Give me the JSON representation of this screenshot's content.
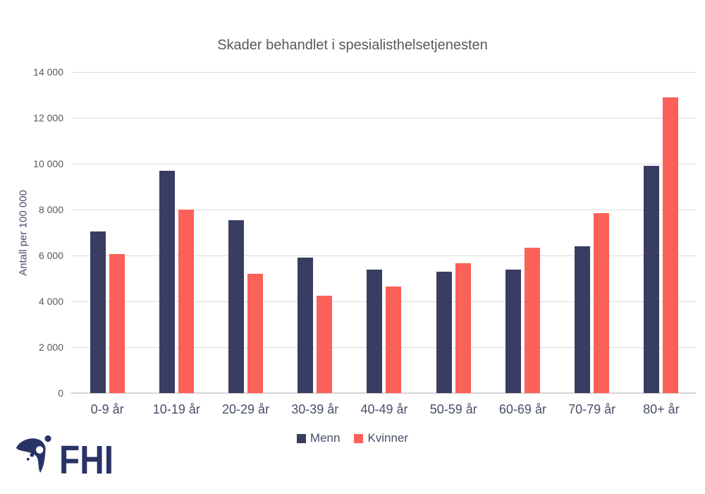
{
  "chart_data": {
    "type": "bar",
    "title": "Skader behandlet i spesialisthelsetjenesten",
    "categories": [
      "0-9 år",
      "10-19 år",
      "20-29 år",
      "30-39 år",
      "40-49 år",
      "50-59 år",
      "60-69 år",
      "70-79 år",
      "80+ år"
    ],
    "series": [
      {
        "name": "Menn",
        "color": "#393D62",
        "values": [
          7050,
          9700,
          7550,
          5900,
          5400,
          5300,
          5400,
          6400,
          9900
        ]
      },
      {
        "name": "Kvinner",
        "color": "#FB6158",
        "values": [
          6050,
          8000,
          5200,
          4250,
          4650,
          5650,
          6350,
          7850,
          12900
        ]
      }
    ],
    "xlabel": "",
    "ylabel": "Antall per 100 000",
    "ylim": [
      0,
      14000
    ],
    "ytick_step": 2000,
    "ytick_labels": [
      "0",
      "2 000",
      "4 000",
      "6 000",
      "8 000",
      "10 000",
      "12 000",
      "14 000"
    ],
    "grid": true,
    "legend_position": "bottom"
  },
  "logo": {
    "text": "FHI",
    "color": "#293366"
  },
  "colors": {
    "title_text": "#595959",
    "axis_tick_text": "#595959",
    "category_text": "#48506A",
    "gridline": "#DBDBDB",
    "background": "#FFFFFF"
  }
}
